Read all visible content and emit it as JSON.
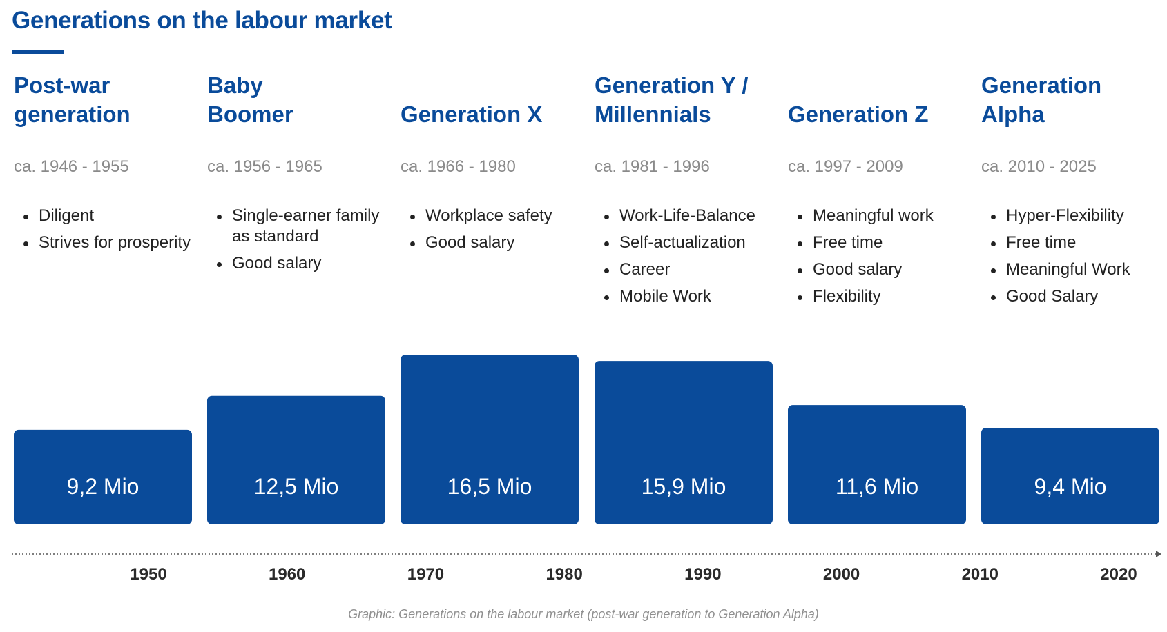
{
  "title": "Generations on the labour market",
  "generations": [
    {
      "name_lines": [
        "Post-war",
        "generation"
      ],
      "years": "ca. 1946 - 1955",
      "traits": [
        "Diligent",
        "Strives for prosperity"
      ]
    },
    {
      "name_lines": [
        "Baby",
        "Boomer"
      ],
      "years": "ca. 1956 - 1965",
      "traits": [
        "Single-earner family as standard",
        "Good salary"
      ]
    },
    {
      "name_lines": [
        "Generation X"
      ],
      "years": "ca. 1966 - 1980",
      "traits": [
        "Workplace safety",
        "Good salary"
      ]
    },
    {
      "name_lines": [
        "Generation Y /",
        "Millennials"
      ],
      "years": "ca. 1981 - 1996",
      "traits": [
        "Work-Life-Balance",
        "Self-actualization",
        "Career",
        "Mobile Work"
      ]
    },
    {
      "name_lines": [
        "Generation Z"
      ],
      "years": "ca. 1997 - 2009",
      "traits": [
        "Meaningful work",
        "Free time",
        "Good salary",
        "Flexibility"
      ]
    },
    {
      "name_lines": [
        "Generation",
        "Alpha"
      ],
      "years": "ca. 2010 - 2025",
      "traits": [
        "Hyper-Flexibility",
        "Free time",
        "Meaningful Work",
        "Good Salary"
      ]
    }
  ],
  "chart_data": {
    "type": "bar",
    "categories": [
      "Post-war generation",
      "Baby Boomer",
      "Generation X",
      "Generation Y / Millennials",
      "Generation Z",
      "Generation Alpha"
    ],
    "values": [
      9.2,
      12.5,
      16.5,
      15.9,
      11.6,
      9.4
    ],
    "value_labels": [
      "9,2 Mio",
      "12,5 Mio",
      "16,5 Mio",
      "15,9 Mio",
      "11,6 Mio",
      "9,4 Mio"
    ],
    "timeline_ticks": [
      "1950",
      "1960",
      "1970",
      "1980",
      "1990",
      "2000",
      "2010",
      "2020"
    ],
    "timeline_arrow": true,
    "grid": false,
    "bar_color": "#0a4b9a"
  },
  "caption": "Graphic: Generations on the labour market (post-war generation to Generation Alpha)",
  "colors": {
    "accent": "#0a4b9a",
    "muted_text": "#8a8a8a",
    "body_text": "#222222"
  }
}
